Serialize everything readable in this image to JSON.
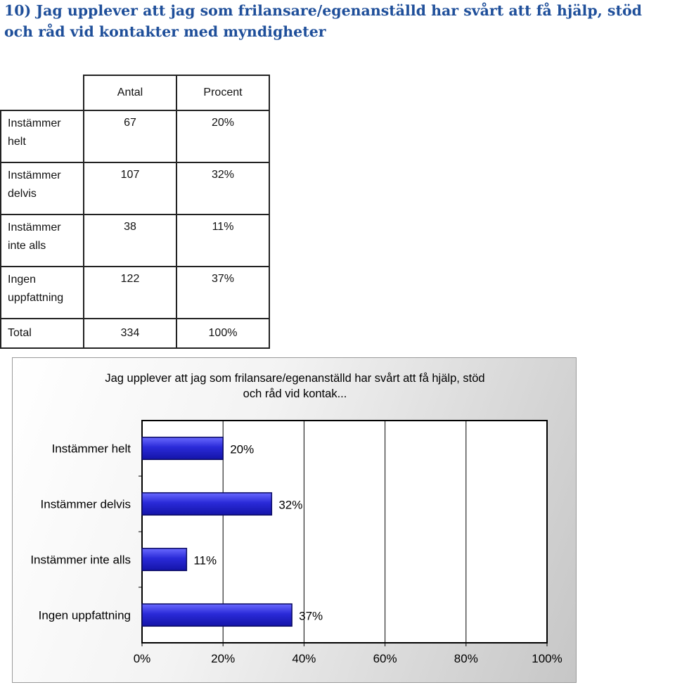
{
  "question": {
    "title": "10) Jag upplever att jag som frilansare/egenanställd har svårt att få hjälp, stöd och råd vid kontakter med myndigheter"
  },
  "table": {
    "headers": [
      "Antal",
      "Procent"
    ],
    "rows": [
      {
        "label_line1": "Instämmer",
        "label_line2": "helt",
        "count": "67",
        "percent": "20%"
      },
      {
        "label_line1": "Instämmer",
        "label_line2": "delvis",
        "count": "107",
        "percent": "32%"
      },
      {
        "label_line1": "Instämmer",
        "label_line2": "inte alls",
        "count": "38",
        "percent": "11%"
      },
      {
        "label_line1": "Ingen",
        "label_line2": "uppfattning",
        "count": "122",
        "percent": "37%"
      }
    ],
    "total": {
      "label": "Total",
      "count": "334",
      "percent": "100%"
    }
  },
  "chart_data": {
    "type": "bar",
    "orientation": "horizontal",
    "title_line1": "Jag upplever att jag som frilansare/egenanställd har svårt att få hjälp, stöd",
    "title_line2": "och råd vid kontak...",
    "categories": [
      "Instämmer helt",
      "Instämmer delvis",
      "Instämmer inte alls",
      "Ingen uppfattning"
    ],
    "values": [
      20,
      32,
      11,
      37
    ],
    "data_labels": [
      "20%",
      "32%",
      "11%",
      "37%"
    ],
    "xlim": [
      0,
      100
    ],
    "xticks": [
      "0%",
      "20%",
      "40%",
      "60%",
      "80%",
      "100%"
    ],
    "grid": true,
    "bar_color": "#2a2ad8",
    "bar_edge_color": "#0a0a60"
  }
}
